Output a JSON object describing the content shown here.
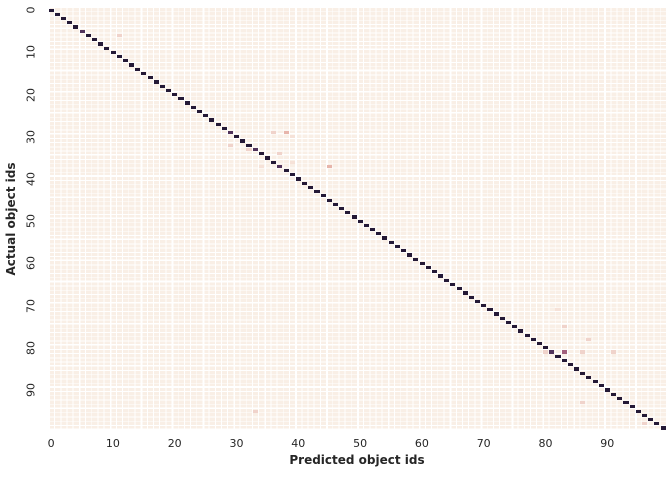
{
  "figure": {
    "xlabel": "Predicted object ids",
    "ylabel": "Actual object ids"
  },
  "chart_data": {
    "type": "heatmap",
    "title": "",
    "xlabel": "Predicted object ids",
    "ylabel": "Actual object ids",
    "n_classes": 100,
    "x_ticks": [
      0,
      10,
      20,
      30,
      40,
      50,
      60,
      70,
      80,
      90
    ],
    "y_ticks": [
      0,
      10,
      20,
      30,
      40,
      50,
      60,
      70,
      80,
      90
    ],
    "xlim": [
      0,
      100
    ],
    "ylim": [
      0,
      100
    ],
    "grid": true,
    "legend": "none",
    "description": "Confusion matrix of ~100 object ids: strong dark diagonal (correct predictions), sparse light-pink off-diagonal misclassifications, a few dimmer (purple) diagonal entries for partially-confused classes.",
    "colors": {
      "background_cell": "#f9efe6",
      "gridline": "#ffffff",
      "tick_text": "#262626",
      "dark": "#241936",
      "purple": "#50325a",
      "mauve": "#a2607c",
      "pink": "#e7b5ab",
      "light_pink": "#f0d3cb",
      "faint_pink": "#f6e2d8"
    },
    "level_values": {
      "dark": 1.0,
      "purple": 0.8,
      "mauve": 0.5,
      "pink": 0.25,
      "light_pink": 0.15,
      "faint_pink": 0.07
    },
    "diagonal": {
      "default_level": "dark",
      "overrides": [
        {
          "index": 5,
          "level": "purple"
        },
        {
          "index": 29,
          "level": "purple"
        },
        {
          "index": 33,
          "level": "purple"
        },
        {
          "index": 37,
          "level": "purple"
        },
        {
          "index": 81,
          "level": "purple"
        }
      ]
    },
    "off_diagonal_cells": [
      {
        "row": 6,
        "col": 11,
        "level": "light_pink"
      },
      {
        "row": 29,
        "col": 36,
        "level": "light_pink"
      },
      {
        "row": 29,
        "col": 38,
        "level": "pink"
      },
      {
        "row": 30,
        "col": 39,
        "level": "faint_pink"
      },
      {
        "row": 32,
        "col": 29,
        "level": "light_pink"
      },
      {
        "row": 33,
        "col": 32,
        "level": "light_pink"
      },
      {
        "row": 34,
        "col": 37,
        "level": "light_pink"
      },
      {
        "row": 36,
        "col": 39,
        "level": "faint_pink"
      },
      {
        "row": 37,
        "col": 34,
        "level": "faint_pink"
      },
      {
        "row": 37,
        "col": 45,
        "level": "pink"
      },
      {
        "row": 71,
        "col": 82,
        "level": "faint_pink"
      },
      {
        "row": 75,
        "col": 83,
        "level": "light_pink"
      },
      {
        "row": 78,
        "col": 87,
        "level": "light_pink"
      },
      {
        "row": 81,
        "col": 80,
        "level": "light_pink"
      },
      {
        "row": 81,
        "col": 83,
        "level": "mauve"
      },
      {
        "row": 81,
        "col": 86,
        "level": "light_pink"
      },
      {
        "row": 81,
        "col": 91,
        "level": "light_pink"
      },
      {
        "row": 93,
        "col": 86,
        "level": "light_pink"
      },
      {
        "row": 95,
        "col": 33,
        "level": "light_pink"
      },
      {
        "row": 98,
        "col": 96,
        "level": "light_pink"
      }
    ]
  }
}
